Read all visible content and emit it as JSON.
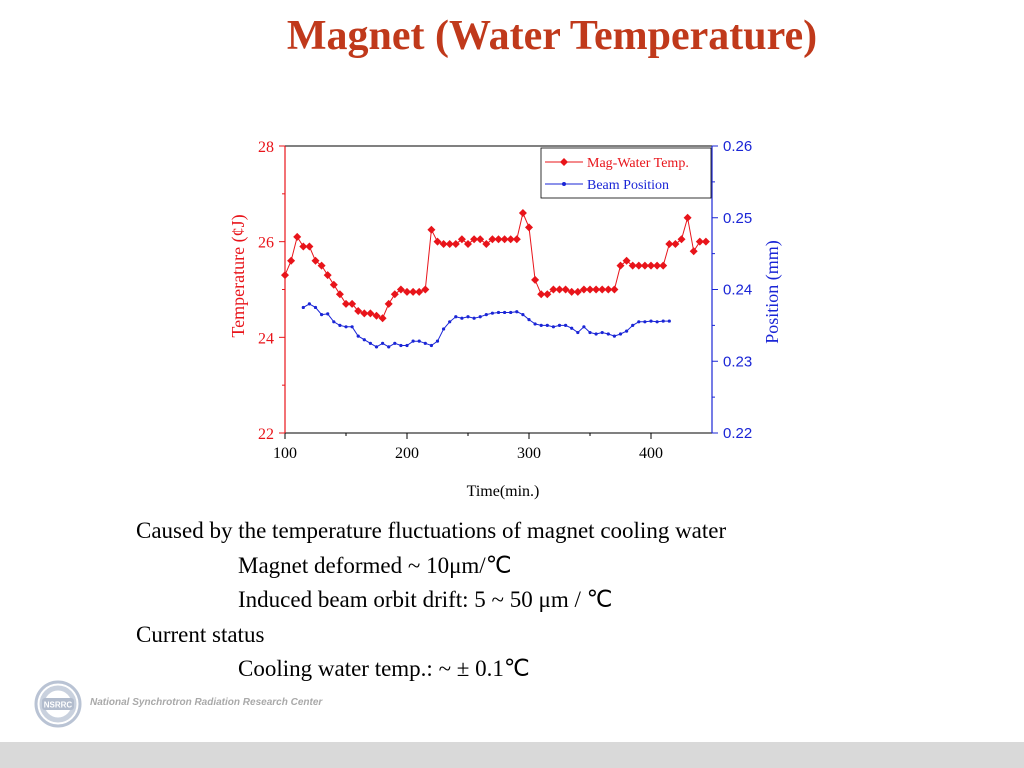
{
  "slide": {
    "title": "Magnet (Water Temperature)",
    "bullets": [
      {
        "text": "Caused by the temperature fluctuations of magnet cooling water",
        "indent": false
      },
      {
        "text": "Magnet deformed ~ 10μm/℃",
        "indent": true
      },
      {
        "text": "Induced beam orbit drift: 5 ~ 50 μm / ℃",
        "indent": true
      },
      {
        "text": "Current status",
        "indent": false
      },
      {
        "text": "Cooling water temp.: ~ ± 0.1℃",
        "indent": true
      }
    ],
    "footer_logo_text": "National Synchrotron Radiation Research Center",
    "logo_badge_text": "NSRRC"
  },
  "chart_data": {
    "type": "line",
    "xlabel": "Time(min.)",
    "ylabel_left": "Temperature (¢J)",
    "ylabel_right": "Position (mm)",
    "xlim": [
      100,
      450
    ],
    "ylim_left": [
      22,
      28
    ],
    "ylim_right": [
      0.22,
      0.26
    ],
    "x_ticks": [
      100,
      200,
      300,
      400
    ],
    "y_left_ticks": [
      22,
      24,
      26,
      28
    ],
    "y_right_ticks": [
      "0.22",
      "0.23",
      "0.24",
      "0.25",
      "0.26"
    ],
    "legend_position": "top-right",
    "colors": {
      "temp": "#e8141a",
      "position": "#1a25d6",
      "left_axis": "#e8141a",
      "right_axis": "#1a25d6"
    },
    "series": [
      {
        "name": "Mag-Water Temp.",
        "axis": "left",
        "marker": "diamond",
        "x": [
          100,
          105,
          110,
          115,
          120,
          125,
          130,
          135,
          140,
          145,
          150,
          155,
          160,
          165,
          170,
          175,
          180,
          185,
          190,
          195,
          200,
          205,
          210,
          215,
          220,
          225,
          230,
          235,
          240,
          245,
          250,
          255,
          260,
          265,
          270,
          275,
          280,
          285,
          290,
          295,
          300,
          305,
          310,
          315,
          320,
          325,
          330,
          335,
          340,
          345,
          350,
          355,
          360,
          365,
          370,
          375,
          380,
          385,
          390,
          395,
          400,
          405,
          410,
          415,
          420,
          425,
          430,
          435,
          440,
          445
        ],
        "y": [
          25.3,
          25.6,
          26.1,
          25.9,
          25.9,
          25.6,
          25.5,
          25.3,
          25.1,
          24.9,
          24.7,
          24.7,
          24.55,
          24.5,
          24.5,
          24.45,
          24.4,
          24.7,
          24.9,
          25.0,
          24.95,
          24.95,
          24.95,
          25.0,
          26.25,
          26.0,
          25.95,
          25.95,
          25.95,
          26.05,
          25.95,
          26.05,
          26.05,
          25.95,
          26.05,
          26.05,
          26.05,
          26.05,
          26.05,
          26.6,
          26.3,
          25.2,
          24.9,
          24.9,
          25.0,
          25.0,
          25.0,
          24.95,
          24.95,
          25.0,
          25.0,
          25.0,
          25.0,
          25.0,
          25.0,
          25.5,
          25.6,
          25.5,
          25.5,
          25.5,
          25.5,
          25.5,
          25.5,
          25.95,
          25.95,
          26.05,
          26.5,
          25.8,
          26.0,
          26.0
        ]
      },
      {
        "name": "Beam Position",
        "axis": "right",
        "marker": "dot",
        "x": [
          115,
          120,
          125,
          130,
          135,
          140,
          145,
          150,
          155,
          160,
          165,
          170,
          175,
          180,
          185,
          190,
          195,
          200,
          205,
          210,
          215,
          220,
          225,
          230,
          235,
          240,
          245,
          250,
          255,
          260,
          265,
          270,
          275,
          280,
          285,
          290,
          295,
          300,
          305,
          310,
          315,
          320,
          325,
          330,
          335,
          340,
          345,
          350,
          355,
          360,
          365,
          370,
          375,
          380,
          385,
          390,
          395,
          400,
          405,
          410,
          415
        ],
        "y": [
          0.2375,
          0.238,
          0.2375,
          0.2365,
          0.2366,
          0.2355,
          0.235,
          0.2348,
          0.2348,
          0.2335,
          0.233,
          0.2325,
          0.232,
          0.2325,
          0.232,
          0.2325,
          0.2322,
          0.2322,
          0.2328,
          0.2328,
          0.2325,
          0.2322,
          0.2328,
          0.2345,
          0.2355,
          0.2362,
          0.236,
          0.2362,
          0.236,
          0.2362,
          0.2365,
          0.2367,
          0.2368,
          0.2368,
          0.2368,
          0.2369,
          0.2365,
          0.2358,
          0.2352,
          0.235,
          0.235,
          0.2348,
          0.235,
          0.235,
          0.2346,
          0.234,
          0.2348,
          0.234,
          0.2338,
          0.234,
          0.2338,
          0.2335,
          0.2338,
          0.2342,
          0.235,
          0.2355,
          0.2355,
          0.2356,
          0.2355,
          0.2356,
          0.2356
        ]
      }
    ]
  }
}
